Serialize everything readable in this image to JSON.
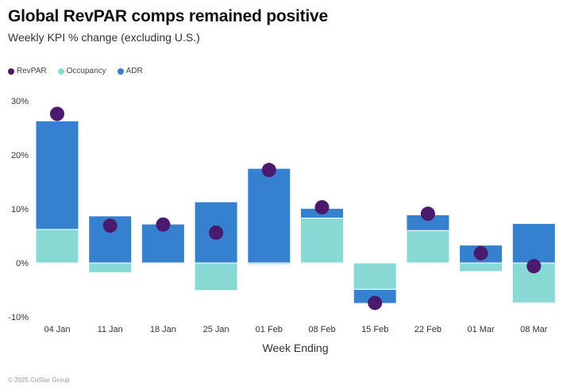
{
  "chart_data": {
    "type": "bar",
    "stacked": true,
    "title": "Global RevPAR comps remained positive",
    "subtitle": "Weekly KPI % change (excluding U.S.)",
    "xlabel": "Week Ending",
    "ylabel": "",
    "ylim": [
      -10,
      30
    ],
    "yticks": [
      30,
      20,
      10,
      0,
      -10
    ],
    "ytick_labels": [
      "30%",
      "20%",
      "10%",
      "0%",
      "-10%"
    ],
    "grid": false,
    "legend_position": "top-left",
    "categories": [
      "04 Jan",
      "11 Jan",
      "18 Jan",
      "25 Jan",
      "01 Feb",
      "08 Feb",
      "15 Feb",
      "22 Feb",
      "01 Mar",
      "08 Mar"
    ],
    "series": [
      {
        "name": "RevPAR",
        "type": "scatter",
        "color": "#4a1a6e",
        "values": [
          27.6,
          6.9,
          7.1,
          5.6,
          17.2,
          10.3,
          -7.4,
          9.1,
          1.8,
          -0.6
        ]
      },
      {
        "name": "Occupancy",
        "type": "bar",
        "color": "#88d8d4",
        "values": [
          6.2,
          -1.8,
          0.0,
          -5.1,
          -0.3,
          8.3,
          -4.9,
          6.0,
          -1.6,
          -7.4
        ]
      },
      {
        "name": "ADR",
        "type": "bar",
        "color": "#3580cf",
        "values": [
          20.1,
          8.7,
          7.2,
          11.3,
          17.5,
          1.8,
          -2.6,
          2.9,
          3.3,
          7.3
        ]
      }
    ]
  },
  "legend": [
    {
      "label": "RevPAR",
      "color": "#4a1a6e"
    },
    {
      "label": "Occupancy",
      "color": "#88d8d4"
    },
    {
      "label": "ADR",
      "color": "#3580cf"
    }
  ],
  "footer": "© 2025 CoStar Group"
}
